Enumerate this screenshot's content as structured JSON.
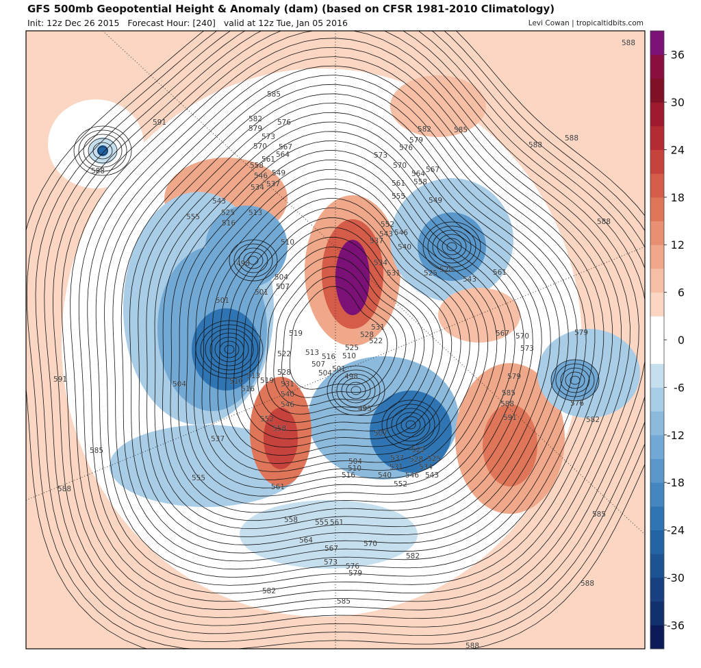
{
  "header": {
    "title": "GFS 500mb Geopotential Height & Anomaly (dam) (based on CFSR 1981-2010 Climatology)",
    "subtitle": "Init: 12z Dec 26 2015   Forecast Hour: [240]   valid at 12z Tue, Jan 05 2016",
    "credit": "Levi Cowan | tropicaltidbits.com"
  },
  "colorbar": {
    "lim": [
      -39,
      39
    ],
    "ticks": [
      36,
      30,
      24,
      18,
      12,
      6,
      0,
      -6,
      -12,
      -18,
      -24,
      -30,
      -36
    ],
    "colors": [
      "#0c1a5a",
      "#13306e",
      "#183f80",
      "#1c5393",
      "#2364a5",
      "#2f74b3",
      "#4486c0",
      "#5a97ca",
      "#72a8d4",
      "#8cbadd",
      "#a9cde7",
      "#c6dfef",
      "#ffffff",
      "#ffffff",
      "#fbd6c3",
      "#f6bfa6",
      "#f0a88b",
      "#e98f72",
      "#e07659",
      "#d45c48",
      "#c6423c",
      "#b52b34",
      "#9c1a2c",
      "#7f1026",
      "#8a0f3e",
      "#7b1176"
    ]
  },
  "contour_labels": [
    588,
    591,
    588,
    585,
    582,
    579,
    576,
    573,
    570,
    567,
    564,
    561,
    558,
    555,
    549,
    546,
    543,
    537,
    534,
    525,
    516,
    513,
    510,
    498,
    504,
    507,
    501,
    501,
    582,
    585,
    579,
    576,
    573,
    570,
    567,
    564,
    561,
    558,
    555,
    549,
    552,
    546,
    543,
    537,
    540,
    534,
    531,
    525,
    528,
    543,
    561,
    519,
    531,
    528,
    522,
    525,
    513,
    516,
    510,
    507,
    504,
    501,
    498,
    522,
    528,
    531,
    540,
    495,
    504,
    510,
    516,
    507,
    522,
    528,
    525,
    534,
    537,
    531,
    546,
    543,
    540,
    552,
    567,
    570,
    573,
    579,
    585,
    588,
    591,
    585,
    588,
    588,
    582,
    570,
    567,
    564,
    558,
    555,
    561,
    573,
    576,
    579,
    582,
    585,
    585,
    588,
    591,
    555,
    561,
    537,
    558,
    552,
    546,
    504,
    510,
    513,
    516,
    519,
    579,
    576,
    582,
    588,
    588,
    588
  ]
}
